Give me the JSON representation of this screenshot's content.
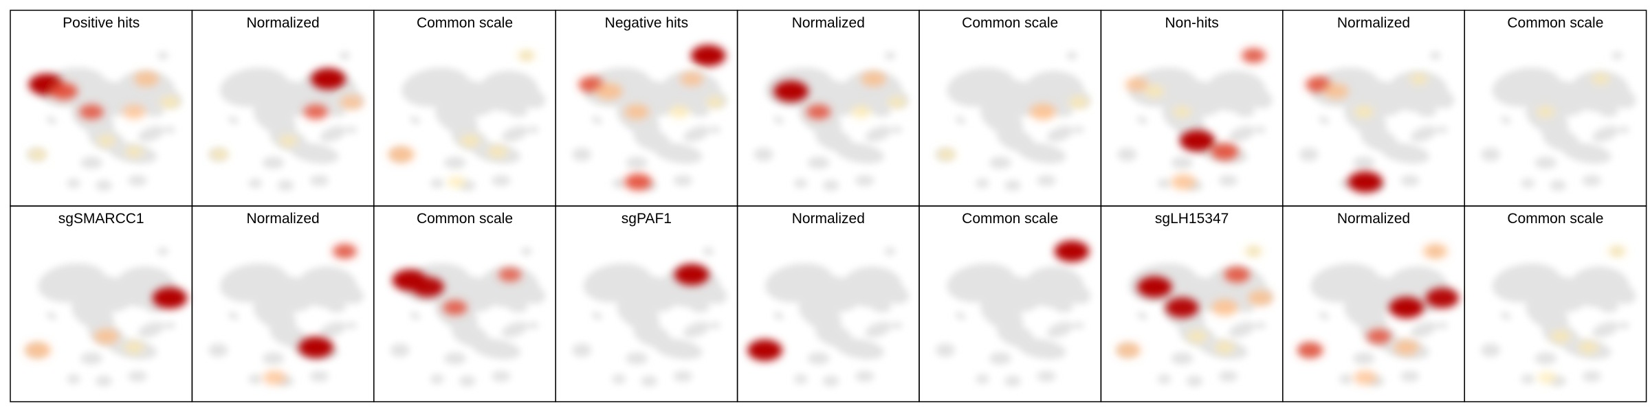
{
  "rows": [
    {
      "panels": [
        {
          "title": "Positive hits",
          "hotspots": [
            {
              "c": "dark",
              "w": 1.0
            },
            {
              "c": "mid",
              "w": 0.8
            },
            {
              "c": "mid",
              "w": 0.6
            },
            {
              "c": "light",
              "w": 0.5
            },
            {
              "c": "light",
              "w": 0.4
            },
            {
              "c": "pale",
              "w": 0.4
            },
            {
              "c": "pale",
              "w": 0.3
            },
            {
              "c": "pale",
              "w": 0.3
            },
            {
              "c": "pale",
              "w": 0.3
            }
          ]
        },
        {
          "title": "Normalized",
          "hotspots": [
            {
              "c": "dark",
              "w": 1.0
            },
            {
              "c": "mid",
              "w": 0.6
            },
            {
              "c": "light",
              "w": 0.4
            },
            {
              "c": "pale",
              "w": 0.3
            },
            {
              "c": "pale",
              "w": 0.3
            }
          ]
        },
        {
          "title": "Common scale",
          "hotspots": [
            {
              "c": "light",
              "w": 0.6
            },
            {
              "c": "pale",
              "w": 0.4
            },
            {
              "c": "pale",
              "w": 0.4
            },
            {
              "c": "pale",
              "w": 0.3
            },
            {
              "c": "pale",
              "w": 0.3
            }
          ]
        },
        {
          "title": "Negative hits",
          "hotspots": [
            {
              "c": "dark",
              "w": 1.0
            },
            {
              "c": "mid",
              "w": 0.8
            },
            {
              "c": "mid",
              "w": 0.7
            },
            {
              "c": "light",
              "w": 0.6
            },
            {
              "c": "light",
              "w": 0.5
            },
            {
              "c": "light",
              "w": 0.4
            },
            {
              "c": "pale",
              "w": 0.4
            },
            {
              "c": "pale",
              "w": 0.3
            }
          ]
        },
        {
          "title": "Normalized",
          "hotspots": [
            {
              "c": "dark",
              "w": 1.0
            },
            {
              "c": "mid",
              "w": 0.6
            },
            {
              "c": "light",
              "w": 0.5
            },
            {
              "c": "pale",
              "w": 0.4
            },
            {
              "c": "pale",
              "w": 0.3
            }
          ]
        },
        {
          "title": "Common scale",
          "hotspots": [
            {
              "c": "light",
              "w": 0.6
            },
            {
              "c": "pale",
              "w": 0.4
            },
            {
              "c": "pale",
              "w": 0.3
            }
          ]
        },
        {
          "title": "Non-hits",
          "hotspots": [
            {
              "c": "dark",
              "w": 1.0
            },
            {
              "c": "mid",
              "w": 0.8
            },
            {
              "c": "mid",
              "w": 0.6
            },
            {
              "c": "light",
              "w": 0.5
            },
            {
              "c": "light",
              "w": 0.4
            },
            {
              "c": "pale",
              "w": 0.4
            },
            {
              "c": "pale",
              "w": 0.3
            }
          ]
        },
        {
          "title": "Normalized",
          "hotspots": [
            {
              "c": "dark",
              "w": 1.0
            },
            {
              "c": "mid",
              "w": 0.7
            },
            {
              "c": "light",
              "w": 0.5
            },
            {
              "c": "pale",
              "w": 0.4
            },
            {
              "c": "pale",
              "w": 0.3
            }
          ]
        },
        {
          "title": "Common scale",
          "hotspots": [
            {
              "c": "pale",
              "w": 0.3
            },
            {
              "c": "pale",
              "w": 0.3
            }
          ]
        }
      ]
    },
    {
      "panels": [
        {
          "title": "sgSMARCC1",
          "hotspots": [
            {
              "c": "dark",
              "w": 1.0
            },
            {
              "c": "light",
              "w": 0.6
            },
            {
              "c": "light",
              "w": 0.5
            },
            {
              "c": "pale",
              "w": 0.4
            }
          ]
        },
        {
          "title": "Normalized",
          "hotspots": [
            {
              "c": "dark",
              "w": 1.0
            },
            {
              "c": "mid",
              "w": 0.6
            },
            {
              "c": "light",
              "w": 0.4
            }
          ]
        },
        {
          "title": "Common scale",
          "hotspots": [
            {
              "c": "dark",
              "w": 1.0
            },
            {
              "c": "dark",
              "w": 0.9
            },
            {
              "c": "mid",
              "w": 0.6
            },
            {
              "c": "mid",
              "w": 0.5
            }
          ]
        },
        {
          "title": "sgPAF1",
          "hotspots": [
            {
              "c": "dark",
              "w": 1.0
            }
          ]
        },
        {
          "title": "Normalized",
          "hotspots": [
            {
              "c": "dark",
              "w": 1.0
            }
          ]
        },
        {
          "title": "Common scale",
          "hotspots": [
            {
              "c": "dark",
              "w": 1.0
            }
          ]
        },
        {
          "title": "sgLH15347",
          "hotspots": [
            {
              "c": "dark",
              "w": 1.0
            },
            {
              "c": "dark",
              "w": 0.9
            },
            {
              "c": "mid",
              "w": 0.7
            },
            {
              "c": "light",
              "w": 0.6
            },
            {
              "c": "light",
              "w": 0.5
            },
            {
              "c": "light",
              "w": 0.5
            },
            {
              "c": "pale",
              "w": 0.4
            },
            {
              "c": "pale",
              "w": 0.4
            },
            {
              "c": "pale",
              "w": 0.3
            }
          ]
        },
        {
          "title": "Normalized",
          "hotspots": [
            {
              "c": "dark",
              "w": 1.0
            },
            {
              "c": "dark",
              "w": 0.9
            },
            {
              "c": "mid",
              "w": 0.7
            },
            {
              "c": "mid",
              "w": 0.6
            },
            {
              "c": "light",
              "w": 0.5
            },
            {
              "c": "light",
              "w": 0.5
            },
            {
              "c": "light",
              "w": 0.4
            }
          ]
        },
        {
          "title": "Common scale",
          "hotspots": [
            {
              "c": "pale",
              "w": 0.4
            },
            {
              "c": "pale",
              "w": 0.4
            },
            {
              "c": "pale",
              "w": 0.3
            },
            {
              "c": "pale",
              "w": 0.3
            }
          ]
        }
      ]
    }
  ],
  "colors": {
    "frame": "#000000",
    "background": "#ffffff",
    "embedding": "#e3e3e3",
    "dark": "#b30000",
    "mid": "#e34a33",
    "light": "#fdbb84",
    "pale": "#fee8a8"
  }
}
